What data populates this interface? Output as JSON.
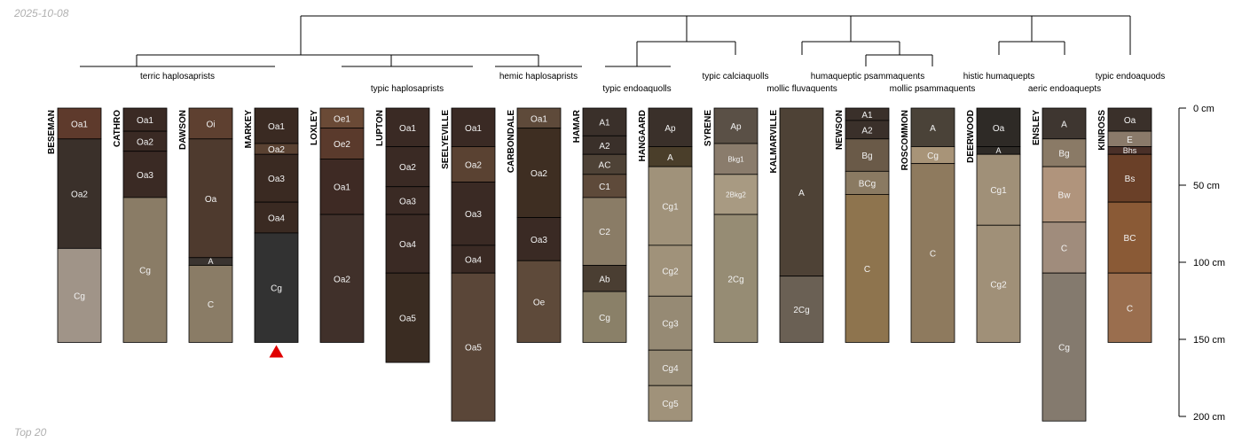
{
  "header": {
    "date": "2025-10-08"
  },
  "footer": {
    "note": "Top 20"
  },
  "depth_axis": {
    "unit": "cm",
    "max_depth": 200,
    "ticks": [
      {
        "value": 0,
        "label": "0 cm"
      },
      {
        "value": 50,
        "label": "50 cm"
      },
      {
        "value": 100,
        "label": "100 cm"
      },
      {
        "value": 150,
        "label": "150 cm"
      },
      {
        "value": 200,
        "label": "200 cm"
      }
    ]
  },
  "marker": {
    "profile": "MARKEY",
    "color": "#e00000"
  },
  "taxa_labels": [
    {
      "text": "terric haplosaprists"
    },
    {
      "text": "typic haplosaprists"
    },
    {
      "text": "hemic haplosaprists"
    },
    {
      "text": "typic endoaquolls"
    },
    {
      "text": "typic calciaquolls"
    },
    {
      "text": "humaqueptic psammaquents"
    },
    {
      "text": "mollic fluvaquents"
    },
    {
      "text": "mollic psammaquents"
    },
    {
      "text": "histic humaquepts"
    },
    {
      "text": "aeric endoaquepts"
    },
    {
      "text": "typic endoaquods"
    }
  ],
  "profiles": [
    {
      "name": "BESEMAN",
      "horizons": [
        {
          "name": "Oa1",
          "top": 0,
          "bottom": 20,
          "color": "#5e3a2c"
        },
        {
          "name": "Oa2",
          "top": 20,
          "bottom": 91,
          "color": "#3a302a"
        },
        {
          "name": "Cg",
          "top": 91,
          "bottom": 152,
          "color": "#a09488"
        }
      ]
    },
    {
      "name": "CATHRO",
      "horizons": [
        {
          "name": "Oa1",
          "top": 0,
          "bottom": 15,
          "color": "#3a2a24"
        },
        {
          "name": "Oa2",
          "top": 15,
          "bottom": 28,
          "color": "#3a2a24"
        },
        {
          "name": "Oa3",
          "top": 28,
          "bottom": 58,
          "color": "#3a2a24"
        },
        {
          "name": "Cg",
          "top": 58,
          "bottom": 152,
          "color": "#8a7c66"
        }
      ]
    },
    {
      "name": "DAWSON",
      "horizons": [
        {
          "name": "Oi",
          "top": 0,
          "bottom": 20,
          "color": "#5e4030"
        },
        {
          "name": "Oa",
          "top": 20,
          "bottom": 97,
          "color": "#4e3a2e"
        },
        {
          "name": "A",
          "top": 97,
          "bottom": 102,
          "color": "#3a3430"
        },
        {
          "name": "C",
          "top": 102,
          "bottom": 152,
          "color": "#8a7c66"
        }
      ]
    },
    {
      "name": "MARKEY",
      "horizons": [
        {
          "name": "Oa1",
          "top": 0,
          "bottom": 23,
          "color": "#3a2a22"
        },
        {
          "name": "Oa2",
          "top": 23,
          "bottom": 30,
          "color": "#5a4232"
        },
        {
          "name": "Oa3",
          "top": 30,
          "bottom": 61,
          "color": "#3a2a22"
        },
        {
          "name": "Oa4",
          "top": 61,
          "bottom": 81,
          "color": "#3a2a22"
        },
        {
          "name": "Cg",
          "top": 81,
          "bottom": 152,
          "color": "#323232"
        }
      ]
    },
    {
      "name": "LOXLEY",
      "horizons": [
        {
          "name": "Oe1",
          "top": 0,
          "bottom": 13,
          "color": "#6a4a36"
        },
        {
          "name": "Oe2",
          "top": 13,
          "bottom": 33,
          "color": "#5a3a2c"
        },
        {
          "name": "Oa1",
          "top": 33,
          "bottom": 69,
          "color": "#3e2a24"
        },
        {
          "name": "Oa2",
          "top": 69,
          "bottom": 152,
          "color": "#40302a"
        }
      ]
    },
    {
      "name": "LUPTON",
      "horizons": [
        {
          "name": "Oa1",
          "top": 0,
          "bottom": 25,
          "color": "#3a2a24"
        },
        {
          "name": "Oa2",
          "top": 25,
          "bottom": 51,
          "color": "#3a2a24"
        },
        {
          "name": "Oa3",
          "top": 51,
          "bottom": 69,
          "color": "#3a2a24"
        },
        {
          "name": "Oa4",
          "top": 69,
          "bottom": 107,
          "color": "#3a2a24"
        },
        {
          "name": "Oa5",
          "top": 107,
          "bottom": 165,
          "color": "#3a2c22"
        }
      ]
    },
    {
      "name": "SEELYEVILLE",
      "horizons": [
        {
          "name": "Oa1",
          "top": 0,
          "bottom": 25,
          "color": "#3a2a24"
        },
        {
          "name": "Oa2",
          "top": 25,
          "bottom": 48,
          "color": "#5a4232"
        },
        {
          "name": "Oa3",
          "top": 48,
          "bottom": 89,
          "color": "#3a2a24"
        },
        {
          "name": "Oa4",
          "top": 89,
          "bottom": 107,
          "color": "#3a2a24"
        },
        {
          "name": "Oa5",
          "top": 107,
          "bottom": 203,
          "color": "#5a4638"
        }
      ]
    },
    {
      "name": "CARBONDALE",
      "horizons": [
        {
          "name": "Oa1",
          "top": 0,
          "bottom": 13,
          "color": "#5e4a3a"
        },
        {
          "name": "Oa2",
          "top": 13,
          "bottom": 71,
          "color": "#3e2e22"
        },
        {
          "name": "Oa3",
          "top": 71,
          "bottom": 99,
          "color": "#3a2a24"
        },
        {
          "name": "Oe",
          "top": 99,
          "bottom": 152,
          "color": "#5e4a3a"
        }
      ]
    },
    {
      "name": "HAMAR",
      "horizons": [
        {
          "name": "A1",
          "top": 0,
          "bottom": 18,
          "color": "#3a302a"
        },
        {
          "name": "A2",
          "top": 18,
          "bottom": 30,
          "color": "#3a302a"
        },
        {
          "name": "AC",
          "top": 30,
          "bottom": 43,
          "color": "#4e4236"
        },
        {
          "name": "C1",
          "top": 43,
          "bottom": 58,
          "color": "#5e4a3a"
        },
        {
          "name": "C2",
          "top": 58,
          "bottom": 102,
          "color": "#8a7c66"
        },
        {
          "name": "Ab",
          "top": 102,
          "bottom": 119,
          "color": "#4a3e32"
        },
        {
          "name": "Cg",
          "top": 119,
          "bottom": 152,
          "color": "#8a8068"
        }
      ]
    },
    {
      "name": "HANGAARD",
      "horizons": [
        {
          "name": "Ap",
          "top": 0,
          "bottom": 25,
          "color": "#3a302a"
        },
        {
          "name": "A",
          "top": 25,
          "bottom": 38,
          "color": "#4a3e2a"
        },
        {
          "name": "Cg1",
          "top": 38,
          "bottom": 89,
          "color": "#a0927a"
        },
        {
          "name": "Cg2",
          "top": 89,
          "bottom": 122,
          "color": "#a0927a"
        },
        {
          "name": "Cg3",
          "top": 122,
          "bottom": 157,
          "color": "#968a74"
        },
        {
          "name": "Cg4",
          "top": 157,
          "bottom": 180,
          "color": "#968a74"
        },
        {
          "name": "Cg5",
          "top": 180,
          "bottom": 203,
          "color": "#a0927a"
        }
      ]
    },
    {
      "name": "SYRENE",
      "horizons": [
        {
          "name": "Ap",
          "top": 0,
          "bottom": 23,
          "color": "#5a5046"
        },
        {
          "name": "Bkg1",
          "top": 23,
          "bottom": 43,
          "color": "#8a7c6c"
        },
        {
          "name": "2Bkg2",
          "top": 43,
          "bottom": 69,
          "color": "#a89a82"
        },
        {
          "name": "2Cg",
          "top": 69,
          "bottom": 152,
          "color": "#968c74"
        }
      ]
    },
    {
      "name": "KALMARVILLE",
      "horizons": [
        {
          "name": "A",
          "top": 0,
          "bottom": 109,
          "color": "#4e4236"
        },
        {
          "name": "2Cg",
          "top": 109,
          "bottom": 152,
          "color": "#6a6054"
        }
      ]
    },
    {
      "name": "NEWSON",
      "horizons": [
        {
          "name": "A1",
          "top": 0,
          "bottom": 8,
          "color": "#3a302a"
        },
        {
          "name": "A2",
          "top": 8,
          "bottom": 20,
          "color": "#3a302a"
        },
        {
          "name": "Bg",
          "top": 20,
          "bottom": 41,
          "color": "#6a5a48"
        },
        {
          "name": "BCg",
          "top": 41,
          "bottom": 56,
          "color": "#8a7a62"
        },
        {
          "name": "C",
          "top": 56,
          "bottom": 152,
          "color": "#8e744e"
        }
      ]
    },
    {
      "name": "ROSCOMMON",
      "horizons": [
        {
          "name": "A",
          "top": 0,
          "bottom": 25,
          "color": "#4a4238"
        },
        {
          "name": "Cg",
          "top": 25,
          "bottom": 36,
          "color": "#a89478"
        },
        {
          "name": "C",
          "top": 36,
          "bottom": 152,
          "color": "#8e7a5e"
        }
      ]
    },
    {
      "name": "DEERWOOD",
      "horizons": [
        {
          "name": "Oa",
          "top": 0,
          "bottom": 25,
          "color": "#2e2a26"
        },
        {
          "name": "A",
          "top": 25,
          "bottom": 30,
          "color": "#2e2a26"
        },
        {
          "name": "Cg1",
          "top": 30,
          "bottom": 76,
          "color": "#a09078"
        },
        {
          "name": "Cg2",
          "top": 76,
          "bottom": 152,
          "color": "#a09078"
        }
      ]
    },
    {
      "name": "ENSLEY",
      "horizons": [
        {
          "name": "A",
          "top": 0,
          "bottom": 20,
          "color": "#3e3630"
        },
        {
          "name": "Bg",
          "top": 20,
          "bottom": 38,
          "color": "#8a7a66"
        },
        {
          "name": "Bw",
          "top": 38,
          "bottom": 74,
          "color": "#b0947c"
        },
        {
          "name": "C",
          "top": 74,
          "bottom": 107,
          "color": "#a08c7c"
        },
        {
          "name": "Cg",
          "top": 107,
          "bottom": 203,
          "color": "#847a6e"
        }
      ]
    },
    {
      "name": "KINROSS",
      "horizons": [
        {
          "name": "Oa",
          "top": 0,
          "bottom": 15,
          "color": "#3a302a"
        },
        {
          "name": "E",
          "top": 15,
          "bottom": 25,
          "color": "#8a7a6a"
        },
        {
          "name": "Bhs",
          "top": 25,
          "bottom": 30,
          "color": "#4a3028"
        },
        {
          "name": "Bs",
          "top": 30,
          "bottom": 61,
          "color": "#6a4028"
        },
        {
          "name": "BC",
          "top": 61,
          "bottom": 107,
          "color": "#8a5a36"
        },
        {
          "name": "C",
          "top": 107,
          "bottom": 152,
          "color": "#9a6e4e"
        }
      ]
    }
  ]
}
